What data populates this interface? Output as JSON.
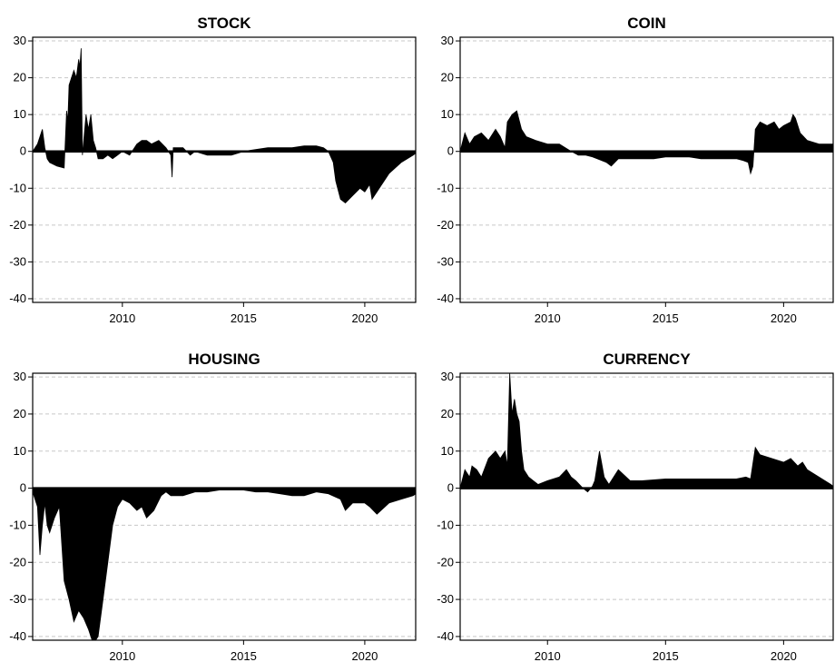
{
  "chart_data": [
    {
      "type": "area",
      "title": "STOCK",
      "xlabel": "",
      "ylabel": "",
      "xlim": [
        2006.3,
        2022.1
      ],
      "ylim": [
        -41,
        31
      ],
      "xticks": [
        2010,
        2015,
        2020
      ],
      "yticks": [
        30,
        20,
        10,
        0,
        -10,
        -20,
        -30,
        -40
      ],
      "grid": "horizontal dashed",
      "color": "#000000",
      "x": [
        2006.3,
        2006.5,
        2006.7,
        2006.8,
        2006.9,
        2007.0,
        2007.3,
        2007.6,
        2007.7,
        2007.75,
        2007.8,
        2008.0,
        2008.1,
        2008.2,
        2008.25,
        2008.3,
        2008.35,
        2008.5,
        2008.6,
        2008.7,
        2008.8,
        2008.9,
        2009.0,
        2009.2,
        2009.4,
        2009.6,
        2009.8,
        2010.0,
        2010.3,
        2010.6,
        2010.8,
        2011.0,
        2011.2,
        2011.5,
        2011.8,
        2012.0,
        2012.05,
        2012.1,
        2012.2,
        2012.5,
        2012.8,
        2013.0,
        2013.5,
        2014.0,
        2014.5,
        2015.0,
        2015.5,
        2016.0,
        2016.5,
        2017.0,
        2017.5,
        2018.0,
        2018.3,
        2018.5,
        2018.7,
        2018.8,
        2019.0,
        2019.2,
        2019.5,
        2019.8,
        2020.0,
        2020.2,
        2020.3,
        2020.6,
        2021.0,
        2021.5,
        2022.0,
        2022.1
      ],
      "values": [
        0,
        2,
        6,
        1,
        -2,
        -3,
        -4,
        -4.5,
        11,
        8,
        18,
        22,
        20,
        25,
        23,
        28,
        -1,
        10,
        6,
        10,
        3,
        1,
        -2,
        -2,
        -1,
        -2,
        -1,
        0,
        -1,
        2,
        3,
        3,
        2,
        3,
        1,
        -1,
        -7,
        1,
        1,
        1,
        -1,
        0,
        -1,
        -1,
        -1,
        0,
        0.5,
        1,
        1,
        1,
        1.5,
        1.5,
        1,
        0,
        -3,
        -8,
        -13,
        -14,
        -12,
        -10,
        -11,
        -9,
        -13,
        -10,
        -6,
        -3,
        -1,
        -0.5
      ]
    },
    {
      "type": "area",
      "title": "COIN",
      "xlabel": "",
      "ylabel": "",
      "xlim": [
        2006.3,
        2022.1
      ],
      "ylim": [
        -41,
        31
      ],
      "xticks": [
        2010,
        2015,
        2020
      ],
      "yticks": [
        30,
        20,
        10,
        0,
        -10,
        -20,
        -30,
        -40
      ],
      "grid": "horizontal dashed",
      "color": "#000000",
      "x": [
        2006.3,
        2006.5,
        2006.7,
        2006.9,
        2007.2,
        2007.5,
        2007.8,
        2008.0,
        2008.2,
        2008.3,
        2008.5,
        2008.7,
        2008.9,
        2009.1,
        2009.5,
        2010.0,
        2010.5,
        2011.0,
        2011.3,
        2011.6,
        2011.9,
        2012.1,
        2012.5,
        2012.7,
        2013.0,
        2013.5,
        2014.0,
        2014.5,
        2015.0,
        2015.5,
        2016.0,
        2016.5,
        2017.0,
        2017.5,
        2018.0,
        2018.3,
        2018.5,
        2018.6,
        2018.7,
        2018.8,
        2019.0,
        2019.3,
        2019.6,
        2019.8,
        2020.0,
        2020.3,
        2020.4,
        2020.5,
        2020.7,
        2021.0,
        2021.5,
        2022.0,
        2022.1
      ],
      "values": [
        0,
        5,
        2,
        4,
        5,
        3,
        6,
        4,
        1,
        8,
        10,
        11,
        6,
        4,
        3,
        2,
        2,
        0,
        -1,
        -1,
        -1.5,
        -2,
        -3,
        -4,
        -2,
        -2,
        -2,
        -2,
        -1.5,
        -1.5,
        -1.5,
        -2,
        -2,
        -2,
        -2,
        -2.5,
        -3,
        -6,
        -4,
        6,
        8,
        7,
        8,
        6,
        7,
        8,
        10,
        9,
        5,
        3,
        2,
        2,
        2
      ]
    },
    {
      "type": "area",
      "title": "HOUSING",
      "xlabel": "",
      "ylabel": "",
      "xlim": [
        2006.3,
        2022.1
      ],
      "ylim": [
        -41,
        31
      ],
      "xticks": [
        2010,
        2015,
        2020
      ],
      "yticks": [
        30,
        20,
        10,
        0,
        -10,
        -20,
        -30,
        -40
      ],
      "grid": "horizontal dashed",
      "color": "#000000",
      "x": [
        2006.3,
        2006.5,
        2006.6,
        2006.7,
        2006.8,
        2006.9,
        2007.0,
        2007.2,
        2007.4,
        2007.6,
        2007.8,
        2008.0,
        2008.2,
        2008.4,
        2008.6,
        2008.8,
        2009.0,
        2009.2,
        2009.4,
        2009.6,
        2009.8,
        2010.0,
        2010.3,
        2010.6,
        2010.8,
        2011.0,
        2011.3,
        2011.6,
        2011.8,
        2012.0,
        2012.5,
        2013.0,
        2013.5,
        2014.0,
        2014.5,
        2015.0,
        2015.5,
        2016.0,
        2016.5,
        2017.0,
        2017.5,
        2018.0,
        2018.5,
        2019.0,
        2019.2,
        2019.5,
        2020.0,
        2020.2,
        2020.5,
        2021.0,
        2021.5,
        2022.0,
        2022.1
      ],
      "values": [
        -1,
        -5,
        -18,
        -10,
        -4,
        -10,
        -12,
        -8,
        -5,
        -25,
        -30,
        -36,
        -33,
        -35,
        -38,
        -42,
        -40,
        -30,
        -20,
        -10,
        -5,
        -3,
        -4,
        -6,
        -5,
        -8,
        -6,
        -2,
        -1,
        -2,
        -2,
        -1,
        -1,
        -0.5,
        -0.5,
        -0.5,
        -1,
        -1,
        -1.5,
        -2,
        -2,
        -1,
        -1.5,
        -3,
        -6,
        -4,
        -4,
        -5,
        -7,
        -4,
        -3,
        -2,
        -1.5
      ]
    },
    {
      "type": "area",
      "title": "CURRENCY",
      "xlabel": "",
      "ylabel": "",
      "xlim": [
        2006.3,
        2022.1
      ],
      "ylim": [
        -41,
        31
      ],
      "xticks": [
        2010,
        2015,
        2020
      ],
      "yticks": [
        30,
        20,
        10,
        0,
        -10,
        -20,
        -30,
        -40
      ],
      "grid": "horizontal dashed",
      "color": "#000000",
      "x": [
        2006.3,
        2006.5,
        2006.7,
        2006.8,
        2007.0,
        2007.2,
        2007.5,
        2007.8,
        2008.0,
        2008.2,
        2008.3,
        2008.4,
        2008.5,
        2008.6,
        2008.7,
        2008.8,
        2008.9,
        2009.0,
        2009.2,
        2009.4,
        2009.6,
        2010.0,
        2010.5,
        2010.8,
        2011.0,
        2011.2,
        2011.5,
        2011.7,
        2011.9,
        2012.0,
        2012.2,
        2012.4,
        2012.6,
        2012.8,
        2013.0,
        2013.5,
        2014.0,
        2015.0,
        2016.0,
        2017.0,
        2018.0,
        2018.4,
        2018.6,
        2018.8,
        2019.0,
        2019.5,
        2020.0,
        2020.3,
        2020.6,
        2020.8,
        2021.0,
        2021.5,
        2022.0,
        2022.1
      ],
      "values": [
        0,
        5,
        3,
        6,
        5,
        3,
        8,
        10,
        8,
        10,
        6,
        31,
        20,
        24,
        20,
        18,
        10,
        5,
        3,
        2,
        1,
        2,
        3,
        5,
        3,
        2,
        0,
        -1,
        0.5,
        2,
        10,
        3,
        1,
        3,
        5,
        2,
        2,
        2.5,
        2.5,
        2.5,
        2.5,
        3,
        2.5,
        11,
        9,
        8,
        7,
        8,
        6,
        7,
        5,
        3,
        1,
        0.5
      ]
    }
  ]
}
